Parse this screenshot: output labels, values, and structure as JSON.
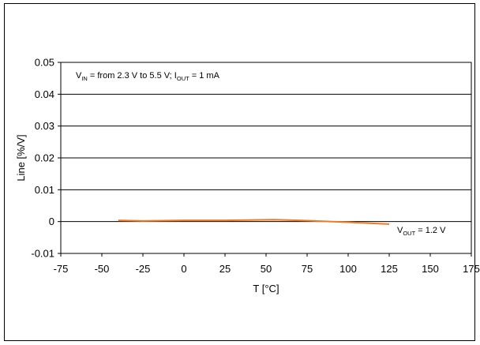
{
  "chart_data": {
    "type": "line",
    "title": "",
    "xlabel": "T [°C]",
    "ylabel": "Line [%/V]",
    "xlim": [
      -75,
      175
    ],
    "ylim": [
      -0.01,
      0.05
    ],
    "xticks": [
      -75,
      -50,
      -25,
      0,
      25,
      50,
      75,
      100,
      125,
      150,
      175
    ],
    "yticks": [
      -0.01,
      0,
      0.01,
      0.02,
      0.03,
      0.04,
      0.05
    ],
    "xtick_labels": [
      "-75",
      "-50",
      "-25",
      "0",
      "25",
      "50",
      "75",
      "100",
      "125",
      "150",
      "175"
    ],
    "ytick_labels": [
      "-0.01",
      "0",
      "0.01",
      "0.02",
      "0.03",
      "0.04",
      "0.05"
    ],
    "grid": "horizontal",
    "series": [
      {
        "color": "#f07b22",
        "x": [
          -40,
          -25,
          0,
          25,
          55,
          75,
          100,
          125
        ],
        "y": [
          0.0004,
          0.0002,
          0.0004,
          0.0004,
          0.0006,
          0.0003,
          -0.0002,
          -0.0008
        ]
      }
    ],
    "annotations": {
      "top": {
        "parts": [
          "V",
          "IN",
          " = from 2.3 V to 5.5 V; I",
          "OUT",
          " = 1 mA"
        ]
      },
      "right": {
        "parts": [
          "V",
          "OUT",
          " = 1.2 V"
        ]
      }
    }
  }
}
